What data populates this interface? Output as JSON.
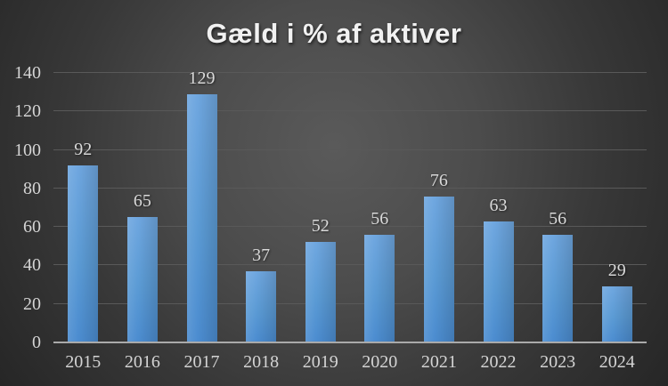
{
  "chart_data": {
    "type": "bar",
    "title": "Gæld i % af aktiver",
    "categories": [
      "2015",
      "2016",
      "2017",
      "2018",
      "2019",
      "2020",
      "2021",
      "2022",
      "2023",
      "2024"
    ],
    "values": [
      92,
      65,
      129,
      37,
      52,
      56,
      76,
      63,
      56,
      29
    ],
    "xlabel": "",
    "ylabel": "",
    "ylim": [
      0,
      140
    ],
    "yticks": [
      0,
      20,
      40,
      60,
      80,
      100,
      120,
      140
    ],
    "grid": true,
    "legend": "none",
    "colors": {
      "bar_top": "#6FA7E0",
      "bar_bottom": "#4B8CD0",
      "bar_main": "#5B9BD5",
      "background_center": "#5A5A5A",
      "background_edge": "#262626",
      "gridline": "#595959",
      "axis_line": "#AAAAAA",
      "tick_label": "#D4D4D4",
      "data_label": "#D9D9D9",
      "title": "#F1F1F1"
    }
  }
}
